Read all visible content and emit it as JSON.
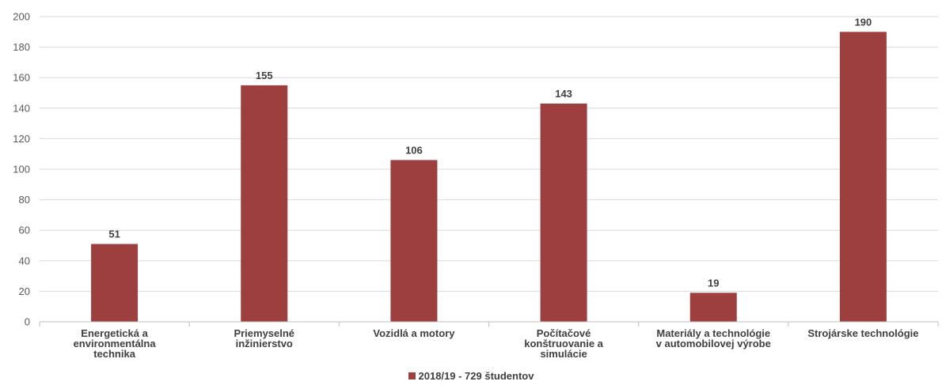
{
  "chart_data": {
    "type": "bar",
    "categories": [
      [
        "Energetická a",
        "environmentálna",
        "technika"
      ],
      [
        "Priemyselné",
        "inžinierstvo"
      ],
      [
        "Vozidlá a motory"
      ],
      [
        "Počítačové",
        "konštruovanie a",
        "simulácie"
      ],
      [
        "Materiály a technológie",
        "v automobilovej výrobe"
      ],
      [
        "Strojárske technológie"
      ]
    ],
    "series": [
      {
        "name": "2018/19 - 729 študentov",
        "values": [
          51,
          155,
          106,
          143,
          19,
          190
        ],
        "color": "#9E3F3F"
      }
    ],
    "ylim": [
      0,
      200
    ],
    "yticks": [
      0,
      20,
      40,
      60,
      80,
      100,
      120,
      140,
      160,
      180,
      200
    ],
    "grid": true,
    "legend_position": "bottom",
    "title": "",
    "xlabel": "",
    "ylabel": ""
  },
  "legend": {
    "label": "2018/19 - 729 študentov"
  }
}
